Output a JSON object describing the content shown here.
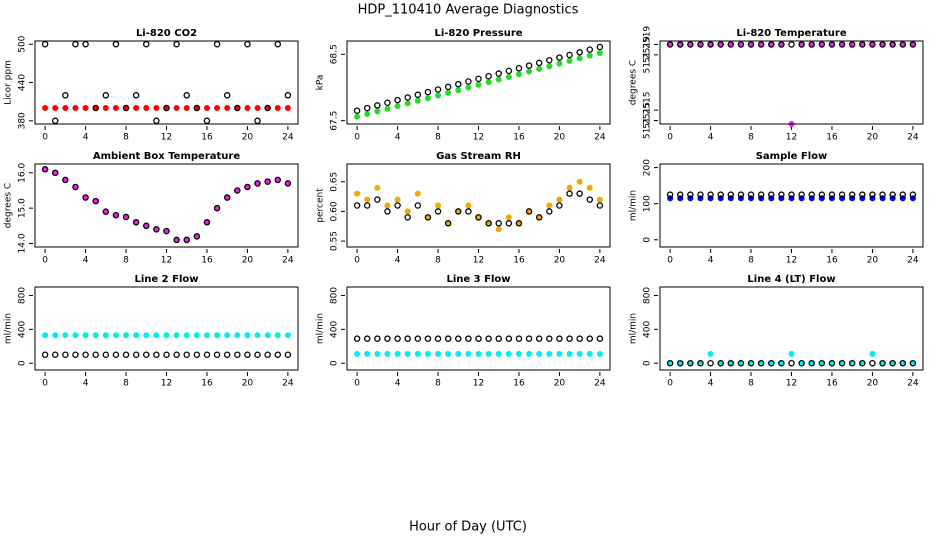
{
  "title": "HDP_110410  Average Diagnostics",
  "xlabel": "Hour of Day (UTC)",
  "chart_data": [
    {
      "type": "scatter",
      "title": "Li-820 CO2",
      "ylabel": "Licor ppm",
      "x": [
        0,
        1,
        2,
        3,
        4,
        5,
        6,
        7,
        8,
        9,
        10,
        11,
        12,
        13,
        14,
        15,
        16,
        17,
        18,
        19,
        20,
        21,
        22,
        23,
        24
      ],
      "xlim": [
        -1,
        25
      ],
      "xticks": [
        0,
        4,
        8,
        12,
        16,
        20,
        24
      ],
      "ylim": [
        375,
        505
      ],
      "yticks": [
        380,
        440,
        500
      ],
      "series": [
        {
          "name": "red",
          "color": "#ff0000",
          "marker": "filled",
          "values": [
            400,
            400,
            400,
            400,
            400,
            400,
            400,
            400,
            400,
            400,
            400,
            400,
            400,
            400,
            400,
            400,
            400,
            400,
            400,
            400,
            400,
            400,
            400,
            400,
            400
          ]
        },
        {
          "name": "black",
          "color": "#000000",
          "marker": "open",
          "values": [
            500,
            380,
            420,
            500,
            500,
            400,
            420,
            500,
            400,
            420,
            500,
            380,
            400,
            500,
            420,
            400,
            380,
            500,
            420,
            400,
            500,
            380,
            400,
            500,
            420
          ]
        }
      ]
    },
    {
      "type": "scatter",
      "title": "Li-820 Pressure",
      "ylabel": "kPa",
      "x": [
        0,
        1,
        2,
        3,
        4,
        5,
        6,
        7,
        8,
        9,
        10,
        11,
        12,
        13,
        14,
        15,
        16,
        17,
        18,
        19,
        20,
        21,
        22,
        23,
        24
      ],
      "xlim": [
        -1,
        25
      ],
      "xticks": [
        0,
        4,
        8,
        12,
        16,
        20,
        24
      ],
      "ylim": [
        67.45,
        68.7
      ],
      "yticks": [
        67.5,
        68.5
      ],
      "series": [
        {
          "name": "green",
          "color": "#22dd22",
          "marker": "filled",
          "values": [
            67.56,
            67.6,
            67.64,
            67.68,
            67.72,
            67.76,
            67.8,
            67.84,
            67.88,
            67.92,
            67.96,
            68.0,
            68.04,
            68.08,
            68.12,
            68.16,
            68.2,
            68.24,
            68.28,
            68.32,
            68.36,
            68.4,
            68.44,
            68.48,
            68.52
          ]
        },
        {
          "name": "black",
          "color": "#000000",
          "marker": "open",
          "values": [
            67.65,
            67.69,
            67.73,
            67.77,
            67.81,
            67.85,
            67.89,
            67.93,
            67.97,
            68.01,
            68.05,
            68.09,
            68.13,
            68.17,
            68.21,
            68.25,
            68.29,
            68.33,
            68.37,
            68.41,
            68.45,
            68.49,
            68.53,
            68.57,
            68.61
          ]
        }
      ]
    },
    {
      "type": "scatter",
      "title": "Li-820 Temperature",
      "ylabel": "degrees C",
      "x": [
        0,
        1,
        2,
        3,
        4,
        5,
        6,
        7,
        8,
        9,
        10,
        11,
        12,
        13,
        14,
        15,
        16,
        17,
        18,
        19,
        20,
        21,
        22,
        23,
        24
      ],
      "xlim": [
        -1,
        25
      ],
      "xticks": [
        0,
        4,
        8,
        12,
        16,
        20,
        24
      ],
      "ylim": [
        51.25146,
        51.25194
      ],
      "yticks": [
        {
          "value": 51.25192,
          "label": "51.2519"
        },
        {
          "value": 51.25186,
          "label": "51.2519"
        },
        {
          "value": 51.25154,
          "label": "51.2515"
        },
        {
          "value": 51.25148,
          "label": "51.2515"
        }
      ],
      "series": [
        {
          "name": "magenta",
          "color": "#ee22ee",
          "marker": "filled",
          "values": [
            51.25192,
            51.25192,
            51.25192,
            51.25192,
            51.25192,
            51.25192,
            51.25192,
            51.25192,
            51.25192,
            51.25192,
            51.25192,
            51.25192,
            51.25146,
            51.25192,
            51.25192,
            51.25192,
            51.25192,
            51.25192,
            51.25192,
            51.25192,
            51.25192,
            51.25192,
            51.25192,
            51.25192,
            51.25192
          ]
        },
        {
          "name": "black",
          "color": "#000000",
          "marker": "open",
          "values": [
            51.25192,
            51.25192,
            51.25192,
            51.25192,
            51.25192,
            51.25192,
            51.25192,
            51.25192,
            51.25192,
            51.25192,
            51.25192,
            51.25192,
            51.25192,
            51.25192,
            51.25192,
            51.25192,
            51.25192,
            51.25192,
            51.25192,
            51.25192,
            51.25192,
            51.25192,
            51.25192,
            51.25192,
            51.25192
          ]
        }
      ]
    },
    {
      "type": "scatter",
      "title": "Ambient Box Temperature",
      "ylabel": "degrees C",
      "x": [
        0,
        1,
        2,
        3,
        4,
        5,
        6,
        7,
        8,
        9,
        10,
        11,
        12,
        13,
        14,
        15,
        16,
        17,
        18,
        19,
        20,
        21,
        22,
        23,
        24
      ],
      "xlim": [
        -1,
        25
      ],
      "xticks": [
        0,
        4,
        8,
        12,
        16,
        20,
        24
      ],
      "ylim": [
        13.9,
        16.25
      ],
      "yticks": [
        {
          "value": 14,
          "label": "14.0"
        },
        {
          "value": 15,
          "label": "15.0"
        },
        {
          "value": 16,
          "label": "16.0"
        }
      ],
      "series": [
        {
          "name": "magenta",
          "color": "#ee22ee",
          "marker": "filled",
          "values": [
            16.1,
            16.0,
            15.8,
            15.6,
            15.3,
            15.2,
            14.9,
            14.8,
            14.75,
            14.6,
            14.5,
            14.4,
            14.35,
            14.1,
            14.1,
            14.2,
            14.6,
            15.0,
            15.3,
            15.5,
            15.6,
            15.7,
            15.75,
            15.8,
            15.7
          ]
        },
        {
          "name": "black",
          "color": "#000000",
          "marker": "open",
          "values": [
            16.1,
            16.0,
            15.8,
            15.6,
            15.3,
            15.2,
            14.9,
            14.8,
            14.75,
            14.6,
            14.5,
            14.4,
            14.35,
            14.1,
            14.1,
            14.2,
            14.6,
            15.0,
            15.3,
            15.5,
            15.6,
            15.7,
            15.75,
            15.8,
            15.7
          ]
        }
      ]
    },
    {
      "type": "scatter",
      "title": "Gas Stream RH",
      "ylabel": "percent",
      "x": [
        0,
        1,
        2,
        3,
        4,
        5,
        6,
        7,
        8,
        9,
        10,
        11,
        12,
        13,
        14,
        15,
        16,
        17,
        18,
        19,
        20,
        21,
        22,
        23,
        24
      ],
      "xlim": [
        -1,
        25
      ],
      "xticks": [
        0,
        4,
        8,
        12,
        16,
        20,
        24
      ],
      "ylim": [
        0.54,
        0.68
      ],
      "yticks": [
        0.55,
        {
          "value": 0.6,
          "label": "0.60"
        },
        0.65
      ],
      "series": [
        {
          "name": "orange",
          "color": "#eeaa00",
          "marker": "filled",
          "values": [
            0.63,
            0.62,
            0.64,
            0.61,
            0.62,
            0.6,
            0.63,
            0.59,
            0.61,
            0.58,
            0.6,
            0.61,
            0.59,
            0.58,
            0.57,
            0.59,
            0.58,
            0.6,
            0.59,
            0.61,
            0.62,
            0.64,
            0.65,
            0.64,
            0.62
          ]
        },
        {
          "name": "black",
          "color": "#000000",
          "marker": "open",
          "values": [
            0.61,
            0.61,
            0.62,
            0.6,
            0.61,
            0.59,
            0.61,
            0.59,
            0.6,
            0.58,
            0.6,
            0.6,
            0.59,
            0.58,
            0.58,
            0.58,
            0.58,
            0.6,
            0.59,
            0.6,
            0.61,
            0.63,
            0.63,
            0.62,
            0.61
          ]
        }
      ]
    },
    {
      "type": "scatter",
      "title": "Sample Flow",
      "ylabel": "ml/min",
      "x": [
        0,
        1,
        2,
        3,
        4,
        5,
        6,
        7,
        8,
        9,
        10,
        11,
        12,
        13,
        14,
        15,
        16,
        17,
        18,
        19,
        20,
        21,
        22,
        23,
        24
      ],
      "xlim": [
        -1,
        25
      ],
      "xticks": [
        0,
        4,
        8,
        12,
        16,
        20,
        24
      ],
      "ylim": [
        -20,
        210
      ],
      "yticks": [
        0,
        100,
        200
      ],
      "series": [
        {
          "name": "blue",
          "color": "#0000ee",
          "marker": "filled",
          "values": [
            115,
            115,
            115,
            115,
            115,
            115,
            115,
            115,
            115,
            115,
            115,
            115,
            115,
            115,
            115,
            115,
            115,
            115,
            115,
            115,
            115,
            115,
            115,
            115,
            115
          ]
        },
        {
          "name": "black",
          "color": "#000000",
          "marker": "open",
          "values": [
            125,
            125,
            125,
            125,
            125,
            125,
            125,
            125,
            125,
            125,
            125,
            125,
            125,
            125,
            125,
            125,
            125,
            125,
            125,
            125,
            125,
            125,
            125,
            125,
            125
          ]
        }
      ]
    },
    {
      "type": "scatter",
      "title": "Line 2 Flow",
      "ylabel": "ml/min",
      "x": [
        0,
        1,
        2,
        3,
        4,
        5,
        6,
        7,
        8,
        9,
        10,
        11,
        12,
        13,
        14,
        15,
        16,
        17,
        18,
        19,
        20,
        21,
        22,
        23,
        24
      ],
      "xlim": [
        -1,
        25
      ],
      "xticks": [
        0,
        4,
        8,
        12,
        16,
        20,
        24
      ],
      "ylim": [
        -80,
        900
      ],
      "yticks": [
        0,
        400,
        800
      ],
      "series": [
        {
          "name": "cyan",
          "color": "#00eeee",
          "marker": "filled",
          "values": [
            330,
            330,
            330,
            330,
            330,
            330,
            330,
            330,
            330,
            330,
            330,
            330,
            330,
            330,
            330,
            330,
            330,
            330,
            330,
            330,
            330,
            330,
            330,
            330,
            330
          ]
        },
        {
          "name": "black",
          "color": "#000000",
          "marker": "open",
          "values": [
            100,
            100,
            100,
            100,
            100,
            100,
            100,
            100,
            100,
            100,
            100,
            100,
            100,
            100,
            100,
            100,
            100,
            100,
            100,
            100,
            100,
            100,
            100,
            100,
            100
          ]
        }
      ]
    },
    {
      "type": "scatter",
      "title": "Line 3 Flow",
      "ylabel": "ml/min",
      "x": [
        0,
        1,
        2,
        3,
        4,
        5,
        6,
        7,
        8,
        9,
        10,
        11,
        12,
        13,
        14,
        15,
        16,
        17,
        18,
        19,
        20,
        21,
        22,
        23,
        24
      ],
      "xlim": [
        -1,
        25
      ],
      "xticks": [
        0,
        4,
        8,
        12,
        16,
        20,
        24
      ],
      "ylim": [
        -80,
        900
      ],
      "yticks": [
        0,
        400,
        800
      ],
      "series": [
        {
          "name": "cyan",
          "color": "#00eeee",
          "marker": "filled",
          "values": [
            110,
            110,
            110,
            110,
            110,
            110,
            110,
            110,
            110,
            110,
            110,
            110,
            110,
            110,
            110,
            110,
            110,
            110,
            110,
            110,
            110,
            110,
            110,
            110,
            110
          ]
        },
        {
          "name": "black",
          "color": "#000000",
          "marker": "open",
          "values": [
            290,
            290,
            290,
            290,
            290,
            290,
            290,
            290,
            290,
            290,
            290,
            290,
            290,
            290,
            290,
            290,
            290,
            290,
            290,
            290,
            290,
            290,
            290,
            290,
            290
          ]
        }
      ]
    },
    {
      "type": "scatter",
      "title": "Line 4 (LT) Flow",
      "ylabel": "ml/min",
      "x": [
        0,
        1,
        2,
        3,
        4,
        5,
        6,
        7,
        8,
        9,
        10,
        11,
        12,
        13,
        14,
        15,
        16,
        17,
        18,
        19,
        20,
        21,
        22,
        23,
        24
      ],
      "xlim": [
        -1,
        25
      ],
      "xticks": [
        0,
        4,
        8,
        12,
        16,
        20,
        24
      ],
      "ylim": [
        -80,
        900
      ],
      "yticks": [
        0,
        400,
        800
      ],
      "series": [
        {
          "name": "cyan",
          "color": "#00eeee",
          "marker": "filled",
          "values": [
            0,
            0,
            0,
            0,
            110,
            0,
            0,
            0,
            0,
            0,
            0,
            0,
            110,
            0,
            0,
            0,
            0,
            0,
            0,
            0,
            110,
            0,
            0,
            0,
            0
          ]
        },
        {
          "name": "black",
          "color": "#000000",
          "marker": "open",
          "values": [
            0,
            0,
            0,
            0,
            0,
            0,
            0,
            0,
            0,
            0,
            0,
            0,
            0,
            0,
            0,
            0,
            0,
            0,
            0,
            0,
            0,
            0,
            0,
            0,
            0
          ]
        }
      ]
    }
  ]
}
